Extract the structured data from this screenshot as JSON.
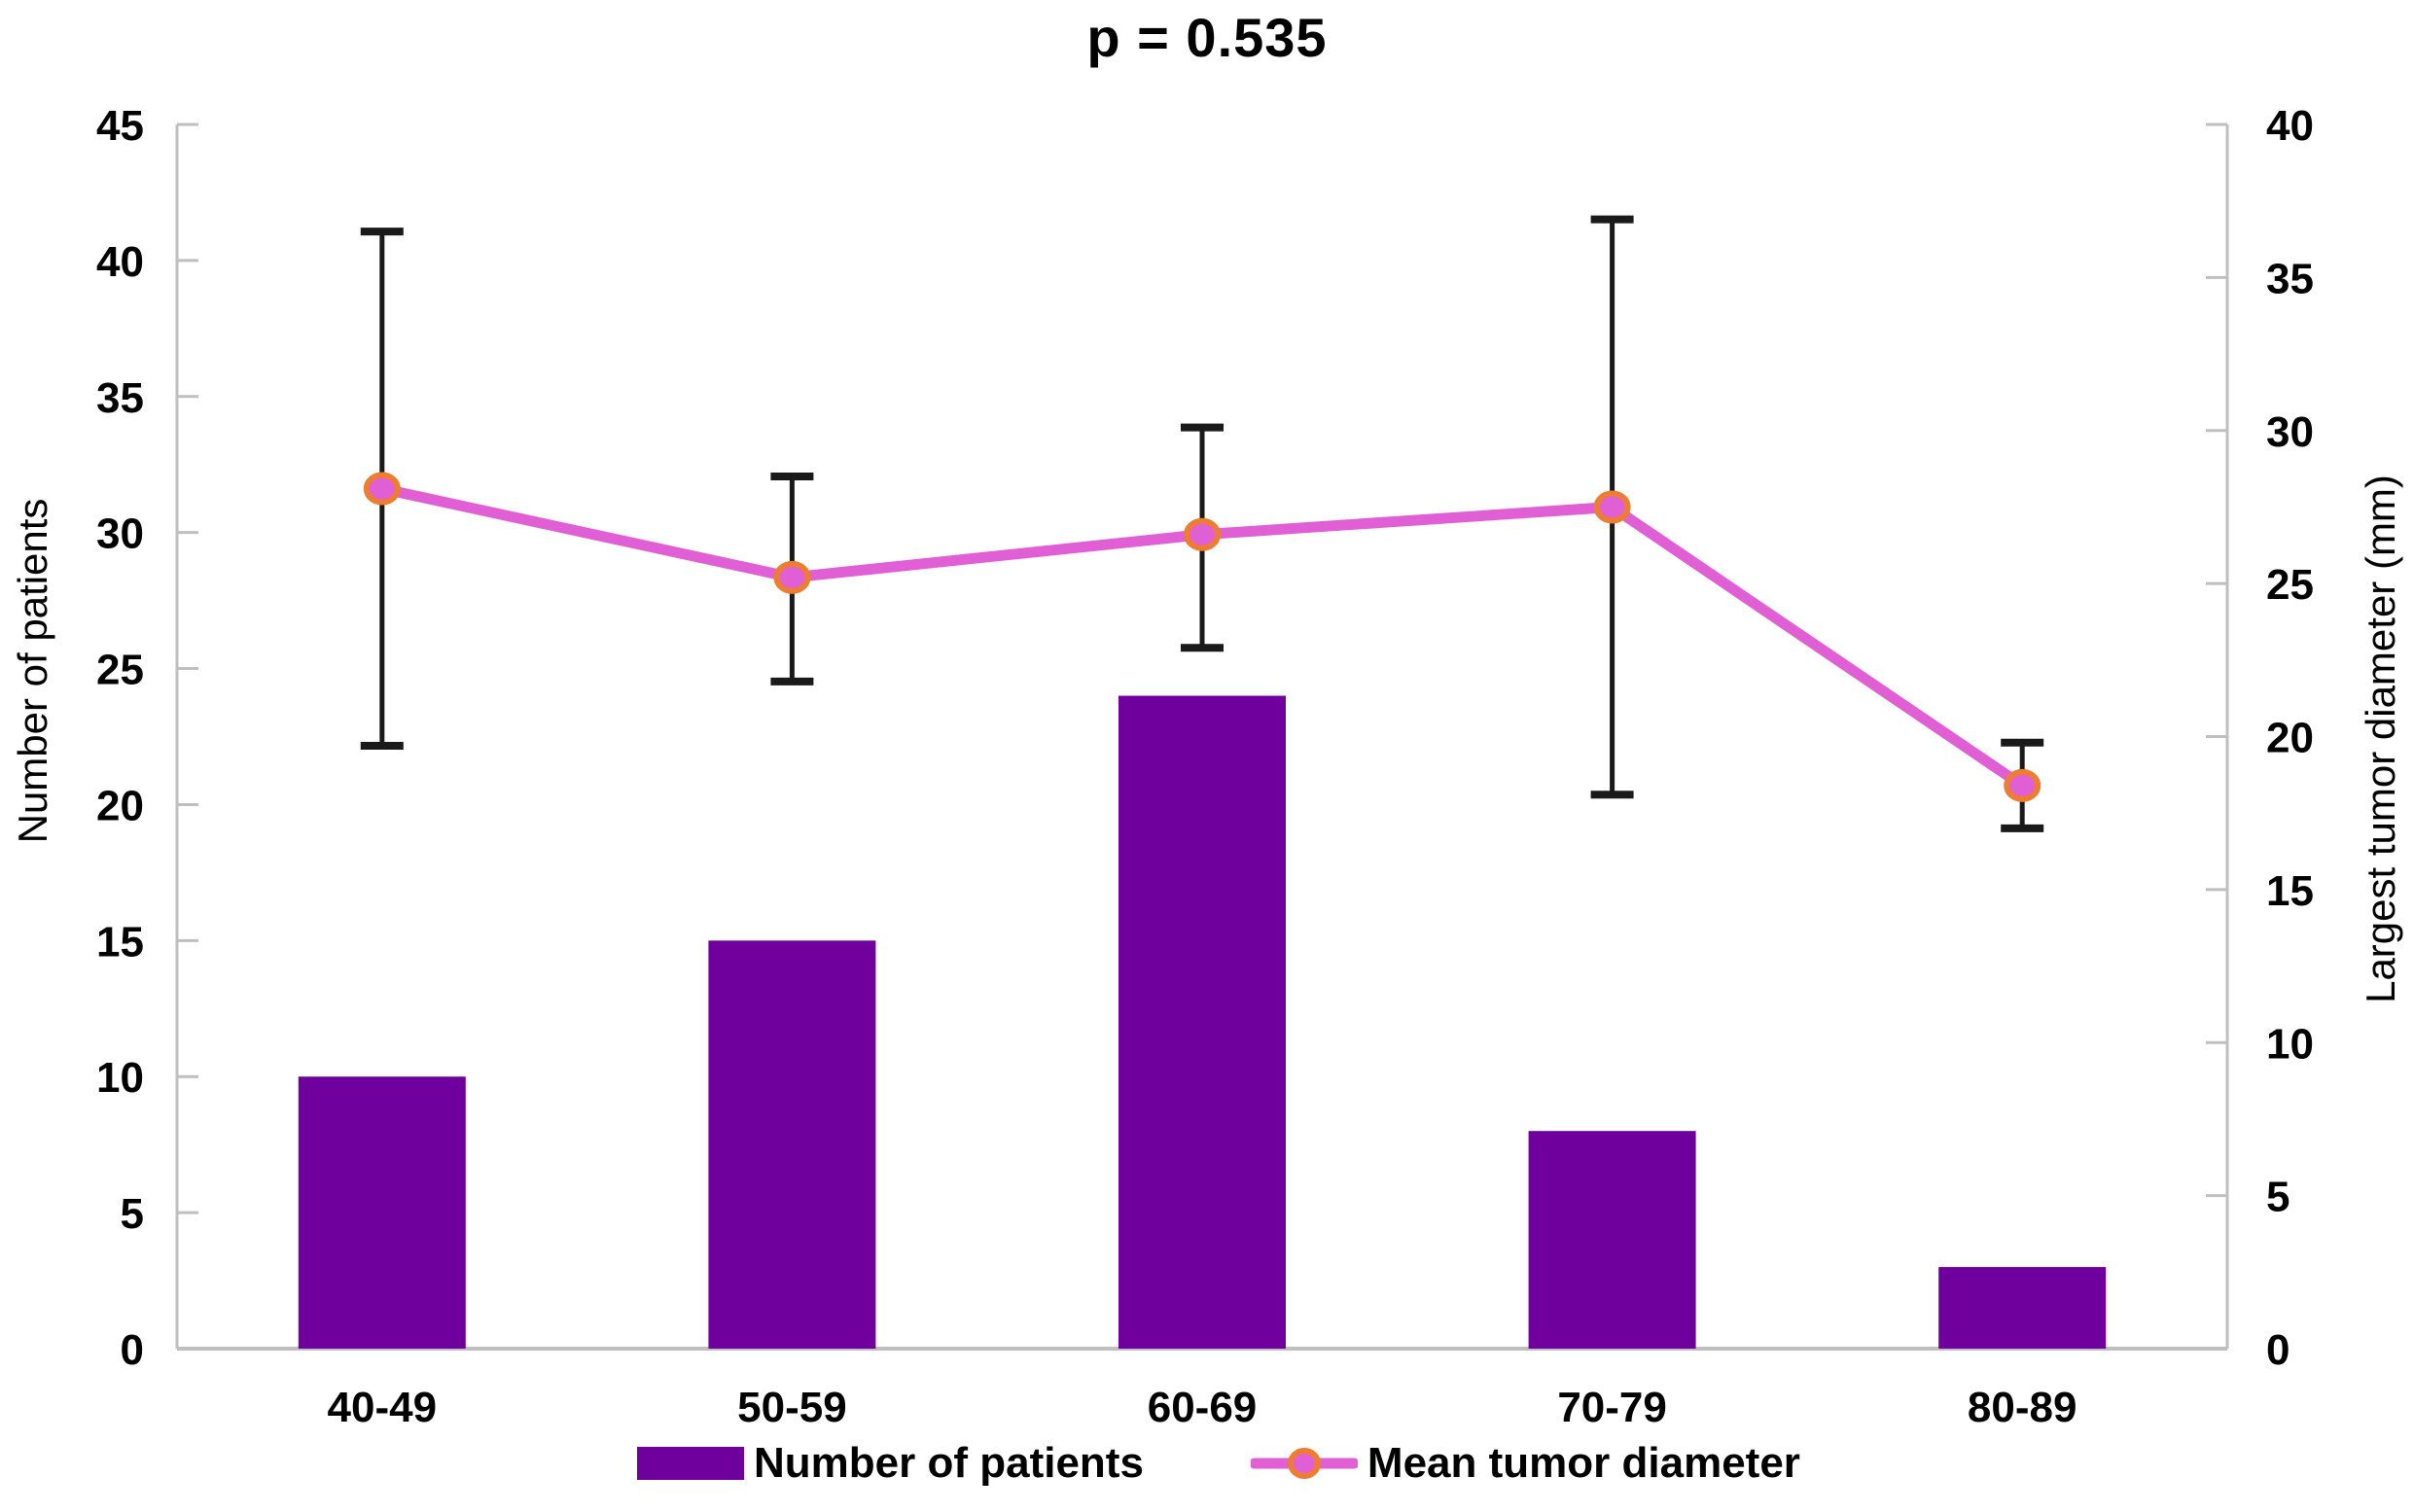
{
  "title": "p = 0.535",
  "legend": {
    "bars_label": "Number of patients",
    "line_label": "Mean tumor diameter"
  },
  "chart_data": {
    "type": "bar",
    "subtype": "bar-line-combo",
    "title": "p = 0.535",
    "categories": [
      "40-49",
      "50-59",
      "60-69",
      "70-79",
      "80-89"
    ],
    "series": [
      {
        "name": "Number of patients",
        "type": "bar",
        "axis": "left",
        "values": [
          10,
          15,
          24,
          8,
          3
        ]
      },
      {
        "name": "Mean tumor diameter",
        "type": "line",
        "axis": "right",
        "values": [
          28.1,
          25.2,
          26.6,
          27.5,
          18.4
        ],
        "error_low": [
          19.7,
          21.8,
          22.9,
          18.1,
          17.0
        ],
        "error_high": [
          36.5,
          28.5,
          30.1,
          36.9,
          19.8
        ]
      }
    ],
    "left_axis": {
      "title": "Number of patients",
      "min": 0,
      "max": 45,
      "tick_step": 5,
      "ticks": [
        0,
        5,
        10,
        15,
        20,
        25,
        30,
        35,
        40,
        45
      ]
    },
    "right_axis": {
      "title": "Largest tumor diameter (mm)",
      "min": 0,
      "max": 40,
      "tick_step": 5,
      "ticks": [
        0,
        5,
        10,
        15,
        20,
        25,
        30,
        35,
        40
      ]
    },
    "grid": false,
    "legend_position": "bottom"
  },
  "colors": {
    "bar": "#70009E",
    "line": "#E05FD5",
    "marker_fill": "#E05FD5",
    "marker_stroke": "#ED7D31",
    "error_bar": "#1A1A1A",
    "axis": "#BFBFBF",
    "text": "#000000"
  }
}
